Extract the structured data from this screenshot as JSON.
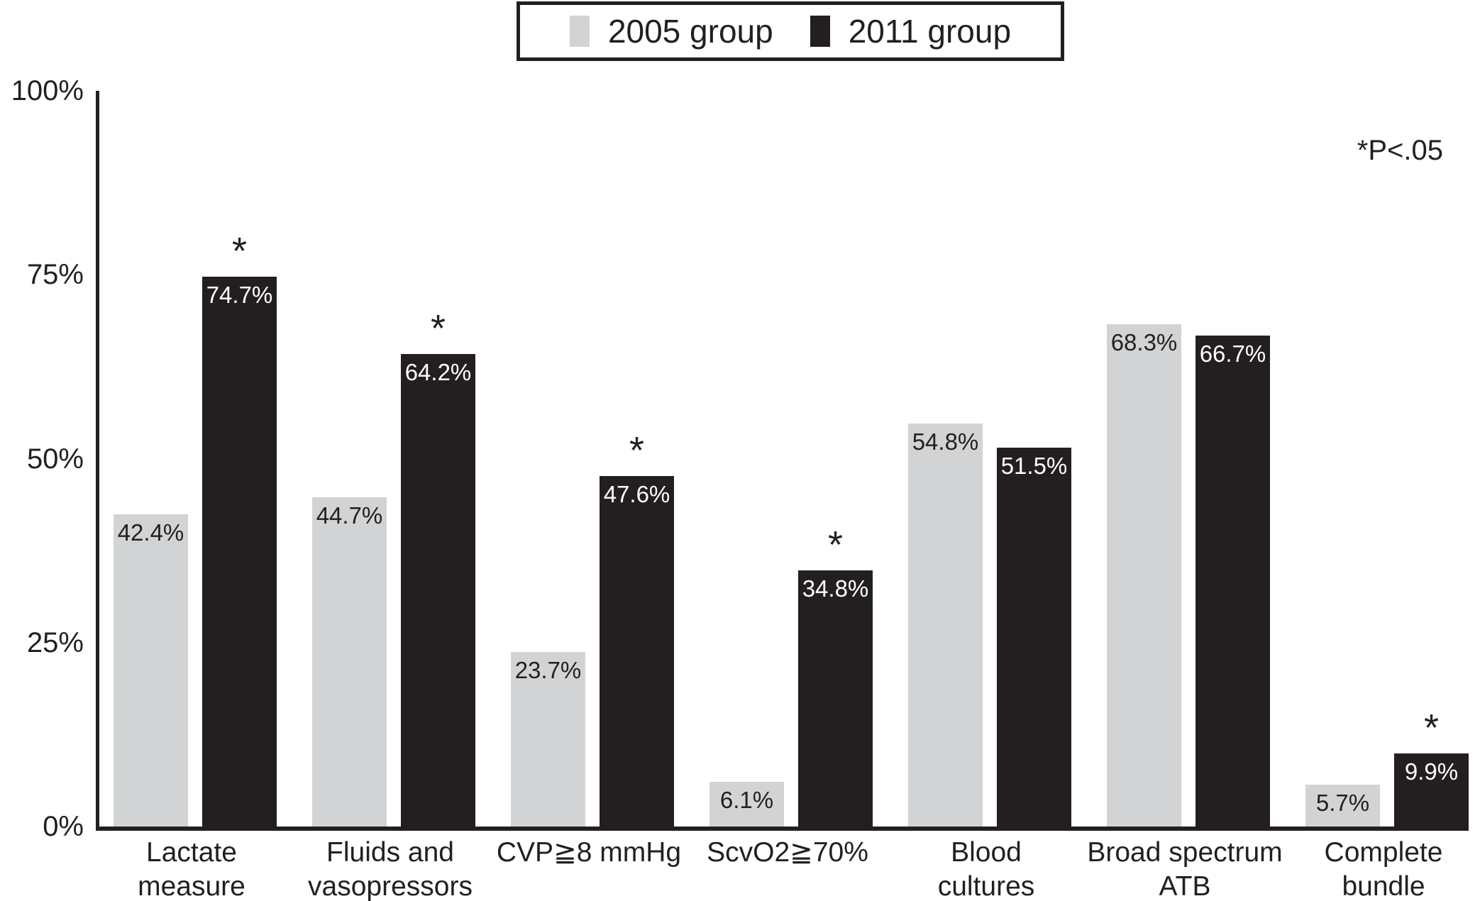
{
  "legend": {
    "items": [
      {
        "label": "2005 group",
        "color": "#d2d3d4"
      },
      {
        "label": "2011 group",
        "color": "#231f20"
      }
    ]
  },
  "annotation": "*P<.05",
  "chart_data": {
    "type": "bar",
    "title": "",
    "xlabel": "",
    "ylabel": "",
    "ylim": [
      0,
      100
    ],
    "y_ticks": [
      "100%",
      "75%",
      "50%",
      "25%",
      "0%"
    ],
    "grid": false,
    "legend_position": "top-center",
    "sig_marker": "*",
    "sig_note": "*P<.05",
    "categories": [
      "Lactate\nmeasure",
      "Fluids and\nvasopressors",
      "CVP≧8 mmHg",
      "ScvO2≧70%",
      "Blood\ncultures",
      "Broad spectrum\nATB",
      "Complete\nbundle"
    ],
    "series": [
      {
        "name": "2005 group",
        "color": "#d2d3d4",
        "label_color": "#231f20",
        "values": [
          42.4,
          44.7,
          23.7,
          6.1,
          54.8,
          68.3,
          5.7
        ],
        "value_labels": [
          "42.4%",
          "44.7%",
          "23.7%",
          "6.1%",
          "54.8%",
          "68.3%",
          "5.7%"
        ],
        "significant": [
          false,
          false,
          false,
          false,
          false,
          false,
          false
        ]
      },
      {
        "name": "2011 group",
        "color": "#231f20",
        "label_color": "#ffffff",
        "values": [
          74.7,
          64.2,
          47.6,
          34.8,
          51.5,
          66.7,
          9.9
        ],
        "value_labels": [
          "74.7%",
          "64.2%",
          "47.6%",
          "34.8%",
          "51.5%",
          "66.7%",
          "9.9%"
        ],
        "significant": [
          true,
          true,
          true,
          true,
          false,
          false,
          true
        ]
      }
    ]
  }
}
